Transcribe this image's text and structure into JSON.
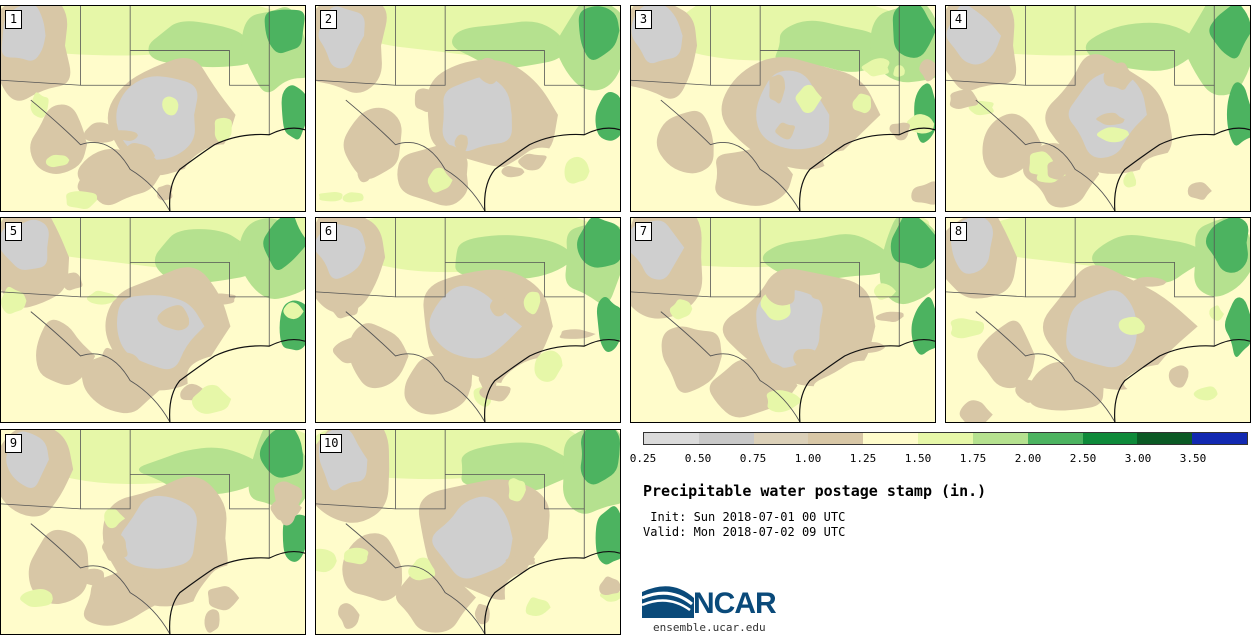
{
  "panels": [
    {
      "label": "1"
    },
    {
      "label": "2"
    },
    {
      "label": "3"
    },
    {
      "label": "4"
    },
    {
      "label": "5"
    },
    {
      "label": "6"
    },
    {
      "label": "7"
    },
    {
      "label": "8"
    },
    {
      "label": "9"
    },
    {
      "label": "10"
    }
  ],
  "colorbar": {
    "colors": [
      "#dadada",
      "#c8c8c8",
      "#dbd0b8",
      "#d8c7a6",
      "#fffccb",
      "#e6f7a8",
      "#b5e18f",
      "#4cb360",
      "#0e8a3a",
      "#0b5a25",
      "#1229b1"
    ],
    "tick_labels": [
      "0.25",
      "0.50",
      "0.75",
      "1.00",
      "1.25",
      "1.50",
      "1.75",
      "2.00",
      "2.50",
      "3.00",
      "3.50"
    ]
  },
  "title": "Precipitable water postage stamp (in.)",
  "init": " Init: Sun 2018-07-01 00 UTC",
  "valid": "Valid: Mon 2018-07-02 09 UTC",
  "logo": {
    "text": "NCAR",
    "url": "ensemble.ucar.edu"
  },
  "map_colors": {
    "base": "#fffccb",
    "tan": "#d8c7a6",
    "gray": "#cfcfcf",
    "lightgreen": "#e6f7a8",
    "midgreen": "#b5e18f",
    "green": "#4cb360",
    "darkgreen": "#0e8a3a",
    "border": "#555555"
  }
}
